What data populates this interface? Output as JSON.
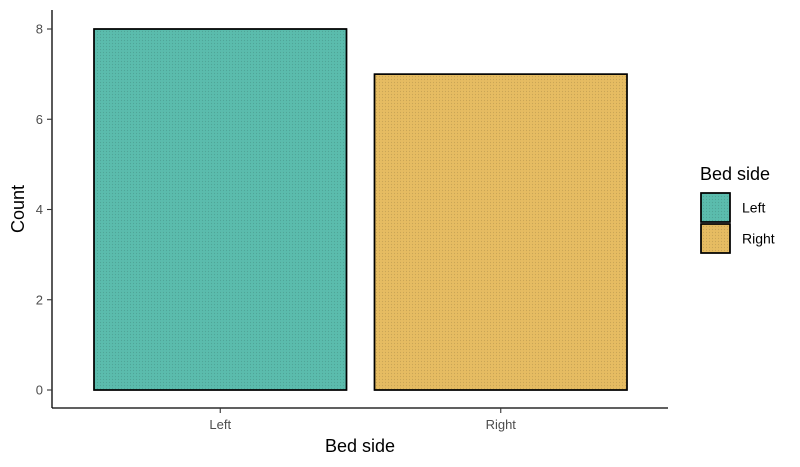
{
  "chart_data": {
    "type": "bar",
    "categories": [
      "Left",
      "Right"
    ],
    "values": [
      8,
      7
    ],
    "colors": [
      "#5bbcad",
      "#e6bc62"
    ],
    "xlabel": "Bed side",
    "ylabel": "Count",
    "ylim": [
      0,
      8
    ],
    "yticks": [
      "0",
      "2",
      "4",
      "6",
      "8"
    ],
    "grid": false,
    "legend": {
      "title": "Bed side",
      "placement": "right",
      "entries": [
        {
          "label": "Left",
          "color": "#5bbcad"
        },
        {
          "label": "Right",
          "color": "#e6bc62"
        }
      ]
    }
  }
}
